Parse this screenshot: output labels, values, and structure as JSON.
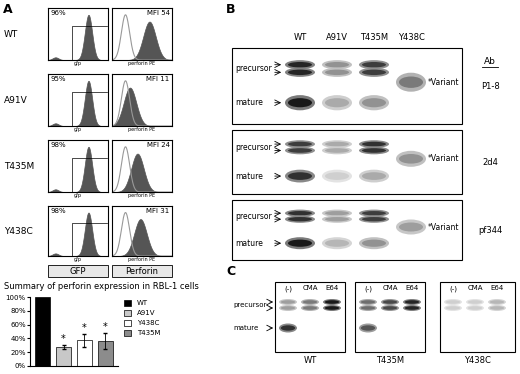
{
  "panel_A": {
    "label": "A",
    "columns": [
      "GFP",
      "Perforin"
    ],
    "gfp_axis_label": "gfp",
    "perforin_axis_label": "perforin PE",
    "rows": [
      {
        "name": "WT",
        "gfp_positive": "96%",
        "perforin_mfi": "MFI 54"
      },
      {
        "name": "A91V",
        "gfp_positive": "95%",
        "perforin_mfi": "MFI 11"
      },
      {
        "name": "T435M",
        "gfp_positive": "98%",
        "perforin_mfi": "MFI 24"
      },
      {
        "name": "Y438C",
        "gfp_positive": "98%",
        "perforin_mfi": "MFI 31"
      }
    ]
  },
  "chart_data": {
    "type": "bar",
    "title": "Summary of perforin expression in RBL-1 cells",
    "categories": [
      "WT",
      "A91V",
      "Y438C",
      "T435M"
    ],
    "values": [
      100,
      28,
      37,
      36
    ],
    "errors": [
      null,
      3,
      10,
      12
    ],
    "annotations": [
      null,
      "*",
      "*",
      "*"
    ],
    "colors": [
      "#000000",
      "#c8c8c8",
      "#ffffff",
      "#8c8c8c"
    ],
    "ylim": [
      0,
      100
    ],
    "yticks": [
      {
        "value": 0,
        "label": "0%"
      },
      {
        "value": 20,
        "label": "20%"
      },
      {
        "value": 40,
        "label": "40%"
      },
      {
        "value": 60,
        "label": "60%"
      },
      {
        "value": 80,
        "label": "80%"
      },
      {
        "value": 100,
        "label": "100%"
      }
    ],
    "legend": "upper left",
    "tick_labels": "y"
  },
  "panel_B": {
    "label": "B",
    "lanes": [
      "WT",
      "A91V",
      "T435M",
      "Y438C"
    ],
    "band_labels": [
      "precursor",
      "mature"
    ],
    "variant_label": "*Variant",
    "ab_header": "Ab",
    "antibodies": [
      "P1-8",
      "2d4",
      "pf344"
    ]
  },
  "panel_C": {
    "label": "C",
    "treatments": [
      "(-)",
      "CMA",
      "E64"
    ],
    "cells": [
      "WT",
      "T435M",
      "Y438C"
    ],
    "band_labels": [
      "precursor",
      "mature"
    ]
  }
}
